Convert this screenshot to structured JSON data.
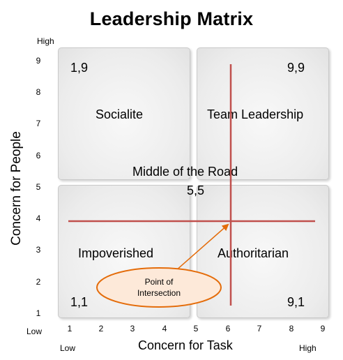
{
  "title": "Leadership Matrix",
  "quadrants": {
    "top_left": {
      "coord": "1,9",
      "name": "Socialite"
    },
    "top_right": {
      "coord": "9,9",
      "name": "Team Leadership"
    },
    "bottom_left": {
      "coord": "1,1",
      "name": "Impoverished"
    },
    "bottom_right": {
      "coord": "9,1",
      "name": "Authoritarian"
    }
  },
  "center": {
    "name": "Middle of the Road",
    "coord": "5,5"
  },
  "callout": {
    "line1": "Point of",
    "line2": "Intersection"
  },
  "axes": {
    "y_title": "Concern for People",
    "x_title": "Concern for Task",
    "y_high": "High",
    "y_low": "Low",
    "x_low": "Low",
    "x_high": "High",
    "y_ticks": [
      "9",
      "8",
      "7",
      "6",
      "5",
      "4",
      "3",
      "2",
      "1"
    ],
    "x_ticks": [
      "1",
      "2",
      "3",
      "4",
      "5",
      "6",
      "7",
      "8",
      "9"
    ]
  },
  "colors": {
    "line": "#c0504d",
    "ellipse_fill": "#fde9d9",
    "ellipse_stroke": "#e46c0a",
    "arrow": "#e46c0a"
  }
}
